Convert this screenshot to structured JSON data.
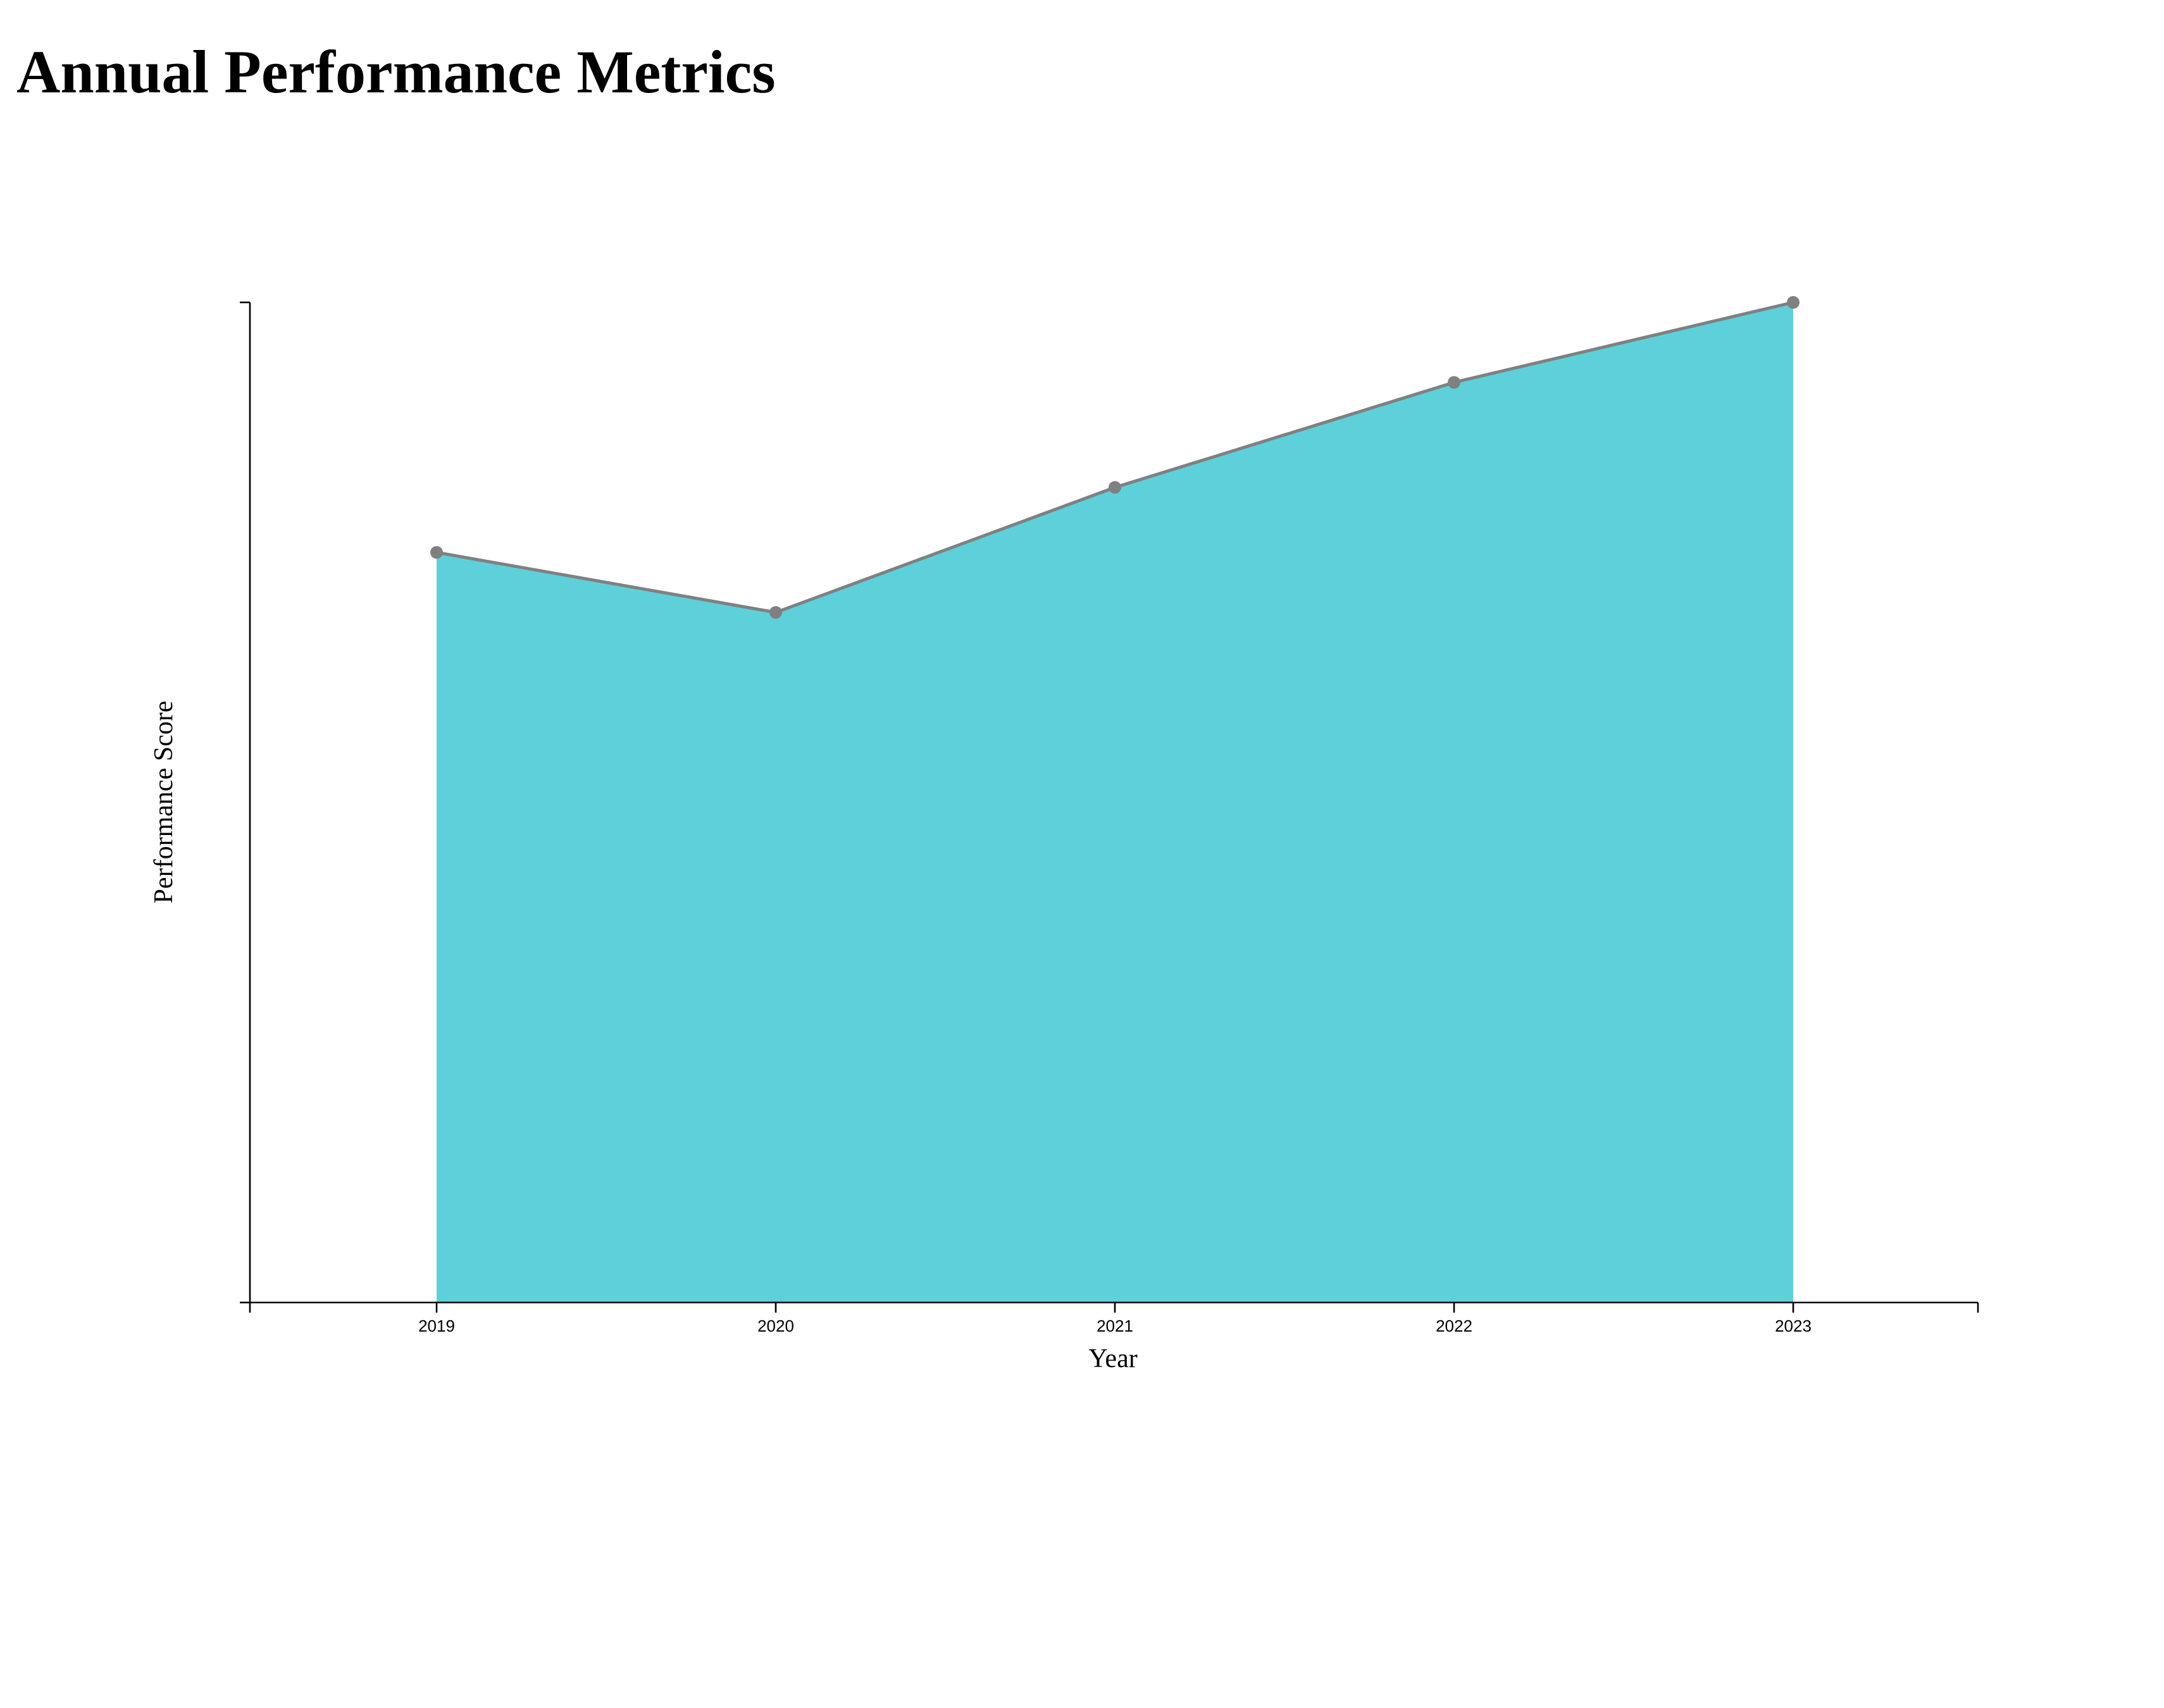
{
  "page": {
    "title": "Annual Performance Metrics"
  },
  "colors": {
    "area_fill": "#5ed0da",
    "line": "#808080",
    "point": "#808080",
    "axis": "#000000"
  },
  "chart_data": {
    "type": "area",
    "title": "Annual Performance Metrics",
    "xlabel": "Year",
    "ylabel": "Performance Score",
    "categories": [
      "2019",
      "2020",
      "2021",
      "2022",
      "2023"
    ],
    "series": [
      {
        "values": [
          75,
          69,
          81.5,
          92,
          100
        ]
      }
    ],
    "ylim": [
      0,
      100
    ],
    "grid": false,
    "legend": "none",
    "markers": true
  }
}
